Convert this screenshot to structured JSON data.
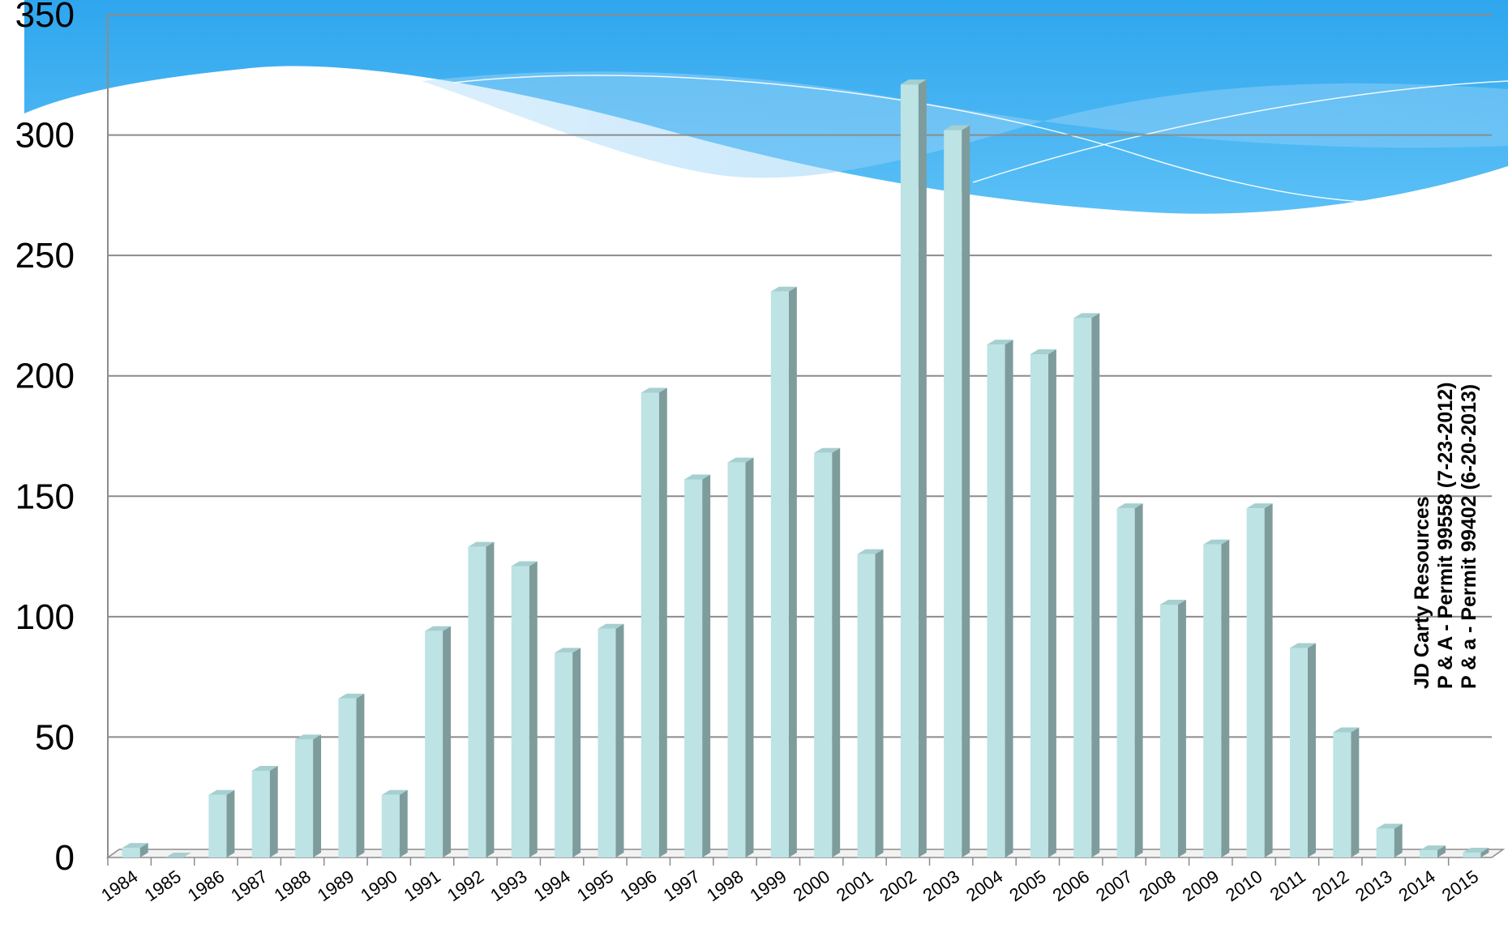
{
  "chart_data": {
    "type": "bar",
    "title": "",
    "xlabel": "",
    "ylabel": "",
    "ylim": [
      0,
      350
    ],
    "yticks": [
      0,
      50,
      100,
      150,
      200,
      250,
      300,
      350
    ],
    "grid": true,
    "categories": [
      "1984",
      "1985",
      "1986",
      "1987",
      "1988",
      "1989",
      "1990",
      "1991",
      "1992",
      "1993",
      "1994",
      "1995",
      "1996",
      "1997",
      "1998",
      "1999",
      "2000",
      "2001",
      "2002",
      "2003",
      "2004",
      "2005",
      "2006",
      "2007",
      "2008",
      "2009",
      "2010",
      "2011",
      "2012",
      "2013",
      "2014",
      "2015"
    ],
    "values": [
      4,
      0,
      26,
      36,
      49,
      66,
      26,
      94,
      129,
      121,
      85,
      95,
      193,
      157,
      164,
      235,
      168,
      126,
      321,
      302,
      213,
      209,
      224,
      145,
      105,
      130,
      145,
      87,
      52,
      12,
      3,
      2
    ],
    "annotations": [
      "JD Carty Resources",
      "P & A - Permit 99558 (7-23-2012)",
      "P & a - Permit 99402 (6-20-2013)"
    ],
    "colors": {
      "bar_front": "#bde3e4",
      "bar_side": "#7e9c9c",
      "bar_top": "#a6cfd0",
      "grid": "#8c8c8c",
      "wave_blue": "#38aef0"
    }
  }
}
